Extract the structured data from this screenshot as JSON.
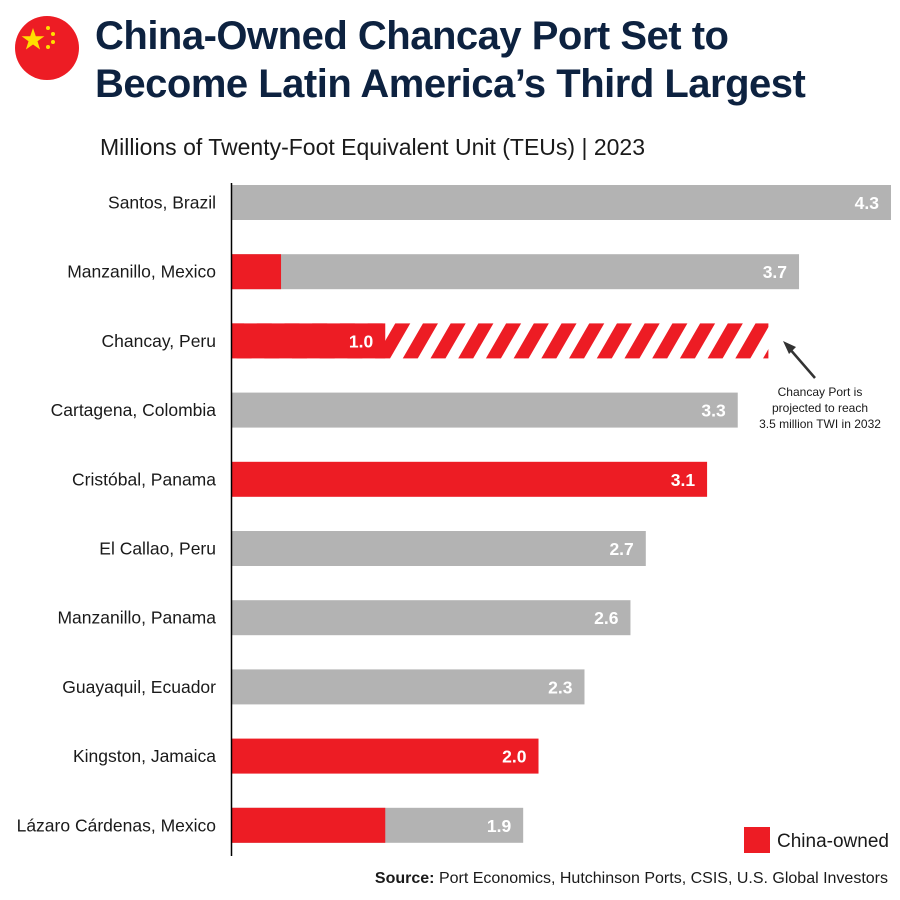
{
  "header": {
    "title_line1": "China-Owned Chancay Port Set to",
    "title_line2": "Become Latin America’s Third Largest",
    "subtitle": "Millions of Twenty-Foot Equivalent Unit (TEUs) | 2023",
    "flag_icon": "china-flag-icon"
  },
  "colors": {
    "china": "#ed1c24",
    "other": "#b3b3b3",
    "title": "#0d2240"
  },
  "chart_data": {
    "type": "bar",
    "orientation": "horizontal",
    "title": "China-Owned Chancay Port Set to Become Latin America’s Third Largest",
    "subtitle": "Millions of Twenty-Foot Equivalent Unit (TEUs) | 2023",
    "xlim": [
      0,
      4.3
    ],
    "categories": [
      "Santos, Brazil",
      "Manzanillo, Mexico",
      "Chancay, Peru",
      "Cartagena, Colombia",
      "Cristóbal, Panama",
      "El Callao, Peru",
      "Manzanillo, Panama",
      "Guayaquil, Ecuador",
      "Kingston, Jamaica",
      "Lázaro Cárdenas, Mexico"
    ],
    "values": [
      4.3,
      3.7,
      1.0,
      3.3,
      3.1,
      2.7,
      2.6,
      2.3,
      2.0,
      1.9
    ],
    "value_labels": [
      "4.3",
      "3.7",
      "1.0",
      "3.3",
      "3.1",
      "2.7",
      "2.6",
      "2.3",
      "2.0",
      "1.9"
    ],
    "china_owned_portion": [
      0,
      0.32,
      1.0,
      0,
      3.1,
      0,
      0,
      0,
      2.0,
      1.0
    ],
    "projected": [
      null,
      null,
      3.5,
      null,
      null,
      null,
      null,
      null,
      null,
      null
    ],
    "legend": {
      "label": "China-owned",
      "position": "bottom-right"
    },
    "annotation": {
      "target": "Chancay, Peru",
      "lines": [
        "Chancay Port is",
        "projected to reach",
        "3.5 million TWI in 2032"
      ]
    }
  },
  "footer": {
    "source_label": "Source:",
    "source_text": "Port Economics, Hutchinson Ports, CSIS, U.S. Global Investors"
  }
}
